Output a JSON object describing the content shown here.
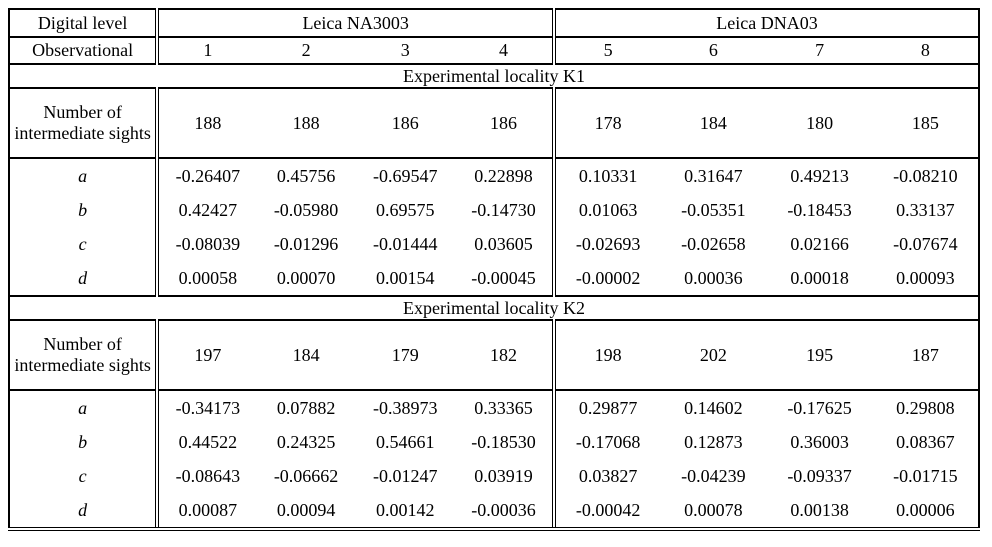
{
  "table": {
    "header": {
      "digital_level": "Digital level",
      "observational": "Observational",
      "group1": "Leica NA3003",
      "group2": "Leica DNA03",
      "columns": [
        "1",
        "2",
        "3",
        "4",
        "5",
        "6",
        "7",
        "8"
      ]
    },
    "sights_label": "Number of intermediate sights",
    "sections": [
      {
        "title": "Experimental locality K1",
        "sights": [
          "188",
          "188",
          "186",
          "186",
          "178",
          "184",
          "180",
          "185"
        ],
        "rows": [
          {
            "label": "a",
            "values": [
              "-0.26407",
              "0.45756",
              "-0.69547",
              "0.22898",
              "0.10331",
              "0.31647",
              "0.49213",
              "-0.08210"
            ]
          },
          {
            "label": "b",
            "values": [
              "0.42427",
              "-0.05980",
              "0.69575",
              "-0.14730",
              "0.01063",
              "-0.05351",
              "-0.18453",
              "0.33137"
            ]
          },
          {
            "label": "c",
            "values": [
              "-0.08039",
              "-0.01296",
              "-0.01444",
              "0.03605",
              "-0.02693",
              "-0.02658",
              "0.02166",
              "-0.07674"
            ]
          },
          {
            "label": "d",
            "values": [
              "0.00058",
              "0.00070",
              "0.00154",
              "-0.00045",
              "-0.00002",
              "0.00036",
              "0.00018",
              "0.00093"
            ]
          }
        ]
      },
      {
        "title": "Experimental locality K2",
        "sights": [
          "197",
          "184",
          "179",
          "182",
          "198",
          "202",
          "195",
          "187"
        ],
        "rows": [
          {
            "label": "a",
            "values": [
              "-0.34173",
              "0.07882",
              "-0.38973",
              "0.33365",
              "0.29877",
              "0.14602",
              "-0.17625",
              "0.29808"
            ]
          },
          {
            "label": "b",
            "values": [
              "0.44522",
              "0.24325",
              "0.54661",
              "-0.18530",
              "-0.17068",
              "0.12873",
              "0.36003",
              "0.08367"
            ]
          },
          {
            "label": "c",
            "values": [
              "-0.08643",
              "-0.06662",
              "-0.01247",
              "0.03919",
              "0.03827",
              "-0.04239",
              "-0.09337",
              "-0.01715"
            ]
          },
          {
            "label": "d",
            "values": [
              "0.00087",
              "0.00094",
              "0.00142",
              "-0.00036",
              "-0.00042",
              "0.00078",
              "0.00138",
              "0.00006"
            ]
          }
        ]
      }
    ]
  }
}
